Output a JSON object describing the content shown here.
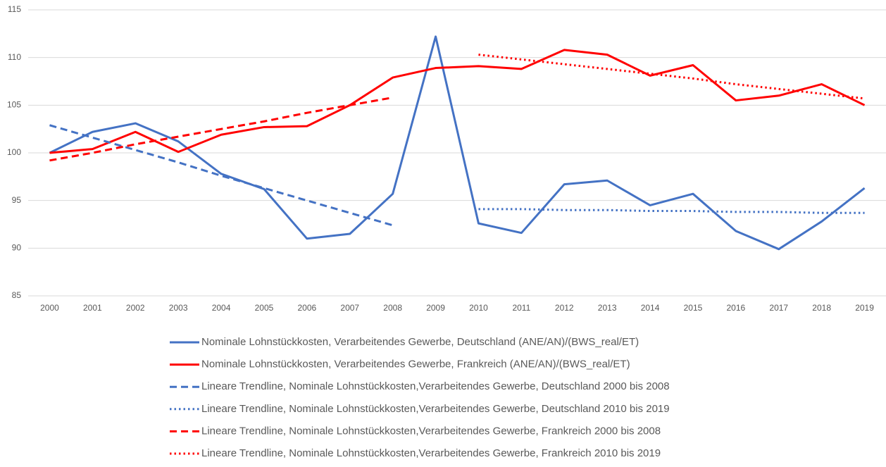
{
  "chart_data": {
    "type": "line",
    "categories": [
      "2000",
      "2001",
      "2002",
      "2003",
      "2004",
      "2005",
      "2006",
      "2007",
      "2008",
      "2009",
      "2010",
      "2011",
      "2012",
      "2013",
      "2014",
      "2015",
      "2016",
      "2017",
      "2018",
      "2019"
    ],
    "series": [
      {
        "name": "Nominale Lohnstückkosten, Verarbeitendes Gewerbe, Deutschland (ANE/AN)/(BWS_real/ET)",
        "color": "#4472c4",
        "style": "solid",
        "values": [
          100,
          102.2,
          103.1,
          101.2,
          97.8,
          96.2,
          91.0,
          91.5,
          95.7,
          112.2,
          92.6,
          91.6,
          96.7,
          97.1,
          94.5,
          95.7,
          91.8,
          89.9,
          92.8,
          96.3
        ]
      },
      {
        "name": "Nominale Lohnstückkosten, Verarbeitendes Gewerbe, Frankreich (ANE/AN)/(BWS_real/ET)",
        "color": "#ff0000",
        "style": "solid",
        "values": [
          100,
          100.4,
          102.2,
          100.1,
          101.9,
          102.7,
          102.8,
          105.0,
          107.9,
          108.9,
          109.1,
          108.8,
          110.8,
          110.3,
          108.1,
          109.2,
          105.5,
          106.0,
          107.2,
          105.0
        ]
      },
      {
        "name": "Lineare Trendline, Nominale Lohnstückkosten,Verarbeitendes Gewerbe, Deutschland 2000 bis 2008",
        "color": "#4472c4",
        "style": "dashed",
        "values": [
          102.9,
          101.6,
          100.3,
          99.0,
          97.6,
          96.3,
          95.0,
          93.7,
          92.4,
          null,
          null,
          null,
          null,
          null,
          null,
          null,
          null,
          null,
          null,
          null
        ]
      },
      {
        "name": "Lineare Trendline, Nominale Lohnstückkosten,Verarbeitendes Gewerbe, Deutschland 2010 bis 2019",
        "color": "#4472c4",
        "style": "dotted",
        "values": [
          null,
          null,
          null,
          null,
          null,
          null,
          null,
          null,
          null,
          null,
          94.1,
          94.1,
          94.0,
          94.0,
          93.9,
          93.9,
          93.8,
          93.8,
          93.7,
          93.7
        ]
      },
      {
        "name": "Lineare Trendline, Nominale Lohnstückkosten,Verarbeitendes Gewerbe, Frankreich 2000 bis 2008",
        "color": "#ff0000",
        "style": "dashed",
        "values": [
          99.2,
          100.0,
          100.9,
          101.7,
          102.5,
          103.3,
          104.2,
          105.0,
          105.8,
          null,
          null,
          null,
          null,
          null,
          null,
          null,
          null,
          null,
          null,
          null
        ]
      },
      {
        "name": "Lineare Trendline, Nominale Lohnstückkosten,Verarbeitendes Gewerbe, Frankreich 2010 bis 2019",
        "color": "#ff0000",
        "style": "dotted",
        "values": [
          null,
          null,
          null,
          null,
          null,
          null,
          null,
          null,
          null,
          null,
          110.3,
          109.8,
          109.3,
          108.8,
          108.3,
          107.8,
          107.2,
          106.7,
          106.2,
          105.7
        ]
      }
    ],
    "ylim": [
      85,
      115
    ],
    "yticks": [
      85,
      90,
      95,
      100,
      105,
      110,
      115
    ],
    "grid": true,
    "legend": "bottom"
  }
}
